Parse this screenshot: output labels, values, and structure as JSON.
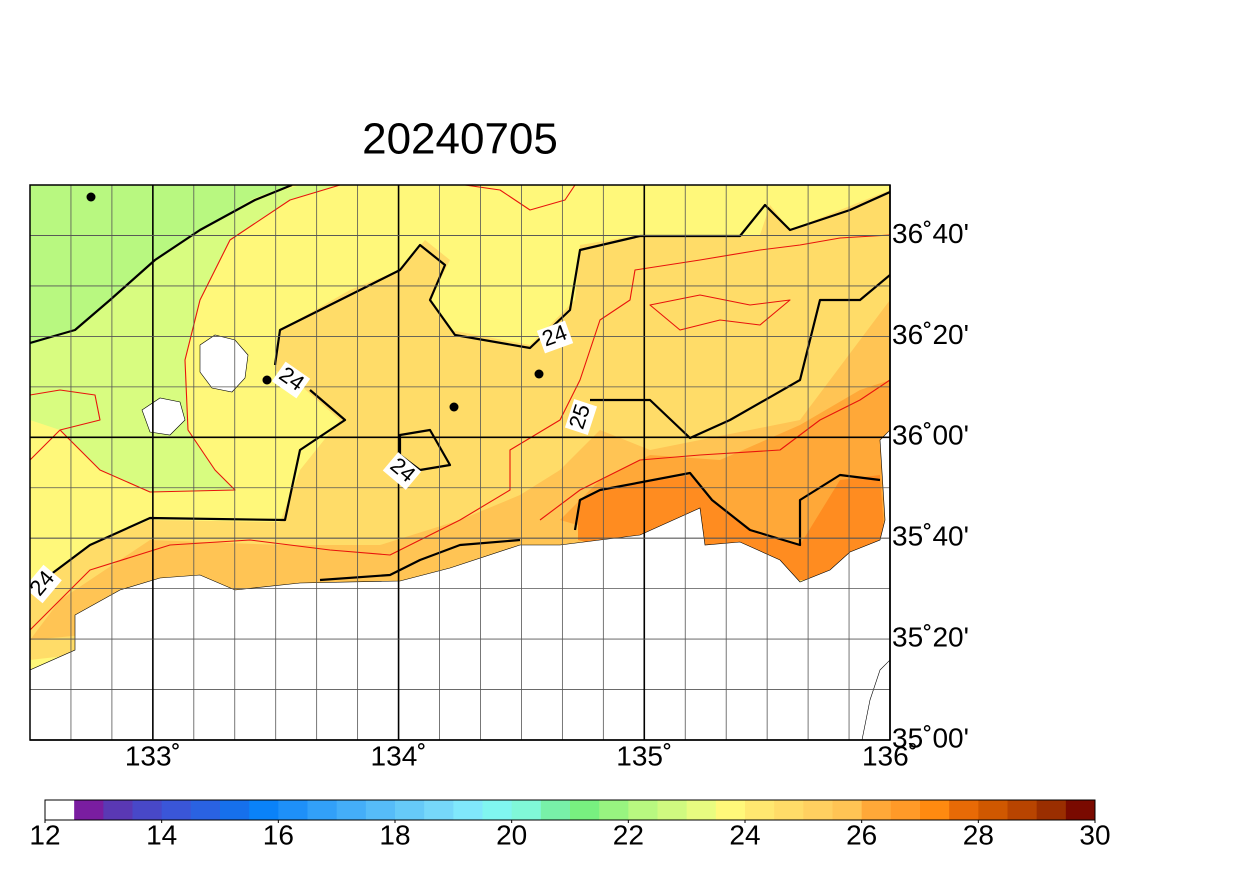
{
  "map_data": {
    "title": "20240705",
    "xlim": [
      132.5,
      136
    ],
    "ylim": [
      35,
      36.8333
    ],
    "lon_ticks": [
      {
        "value": 133,
        "label": "133˚"
      },
      {
        "value": 134,
        "label": "134˚"
      },
      {
        "value": 135,
        "label": "135˚"
      },
      {
        "value": 136,
        "label": "136˚"
      }
    ],
    "lat_ticks": [
      {
        "value": 35,
        "label": "35˚00'"
      },
      {
        "value": 35.3333,
        "label": "35˚20'"
      },
      {
        "value": 35.6667,
        "label": "35˚40'"
      },
      {
        "value": 36,
        "label": "36˚00'"
      },
      {
        "value": 36.3333,
        "label": "36˚20'"
      },
      {
        "value": 36.6667,
        "label": "36˚40'"
      }
    ],
    "contour_labels": [
      "24",
      "24",
      "25",
      "24",
      "24"
    ],
    "colorbar": {
      "range": [
        12,
        30
      ],
      "ticks": [
        12,
        14,
        16,
        18,
        20,
        22,
        24,
        26,
        28,
        30
      ],
      "colors": [
        "#ffffff",
        "#7a1da0",
        "#5a38b4",
        "#4848c8",
        "#3a56d8",
        "#2a62e2",
        "#1670ec",
        "#0a82f8",
        "#1e90f8",
        "#32a0f8",
        "#44aef8",
        "#56bcf8",
        "#66caf8",
        "#76d8fa",
        "#80e8fc",
        "#80f6f0",
        "#80f8d8",
        "#78f0a8",
        "#78f080",
        "#98f480",
        "#b8f880",
        "#d0fa80",
        "#e8fc80",
        "#fff87a",
        "#ffe870",
        "#ffdc68",
        "#ffd060",
        "#ffc454",
        "#ffa838",
        "#ff9a28",
        "#ff8a10",
        "#e86a06",
        "#d05800",
        "#b84400",
        "#9a2e00",
        "#7a0a00"
      ]
    }
  }
}
